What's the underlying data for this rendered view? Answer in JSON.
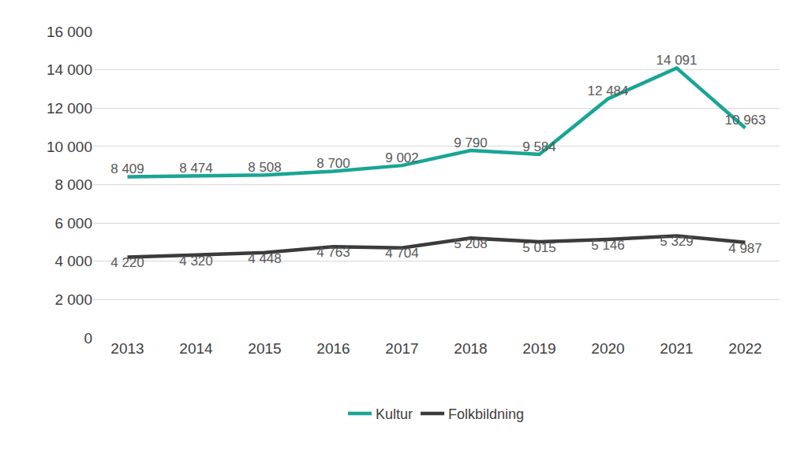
{
  "chart_data": {
    "type": "line",
    "categories": [
      "2013",
      "2014",
      "2015",
      "2016",
      "2017",
      "2018",
      "2019",
      "2020",
      "2021",
      "2022"
    ],
    "series": [
      {
        "name": "Kultur",
        "color": "#1aa595",
        "values": [
          8409,
          8474,
          8508,
          8700,
          9002,
          9790,
          9584,
          12484,
          14091,
          10963
        ],
        "value_labels": [
          "8 409",
          "8 474",
          "8 508",
          "8 700",
          "9 002",
          "9 790",
          "9 584",
          "12 484",
          "14 091",
          "10 963"
        ]
      },
      {
        "name": "Folkbildning",
        "color": "#3b3b3b",
        "values": [
          4220,
          4320,
          4448,
          4763,
          4704,
          5208,
          5015,
          5146,
          5329,
          4987
        ],
        "value_labels": [
          "4 220",
          "4 320",
          "4 448",
          "4 763",
          "4 704",
          "5 208",
          "5 015",
          "5 146",
          "5 329",
          "4 987"
        ]
      }
    ],
    "ylim": [
      0,
      16000
    ],
    "yticks": [
      0,
      {
        "value": 2000,
        "label": "2 000"
      },
      {
        "value": 4000,
        "label": "4 000"
      },
      {
        "value": 6000,
        "label": "6 000"
      },
      {
        "value": 8000,
        "label": "8 000"
      },
      {
        "value": 10000,
        "label": "10 000"
      },
      {
        "value": 12000,
        "label": "12 000"
      },
      {
        "value": 14000,
        "label": "14 000"
      },
      {
        "value": 16000,
        "label": "16 000"
      }
    ],
    "grid": true,
    "legend": "bottom",
    "data_labels": true
  }
}
